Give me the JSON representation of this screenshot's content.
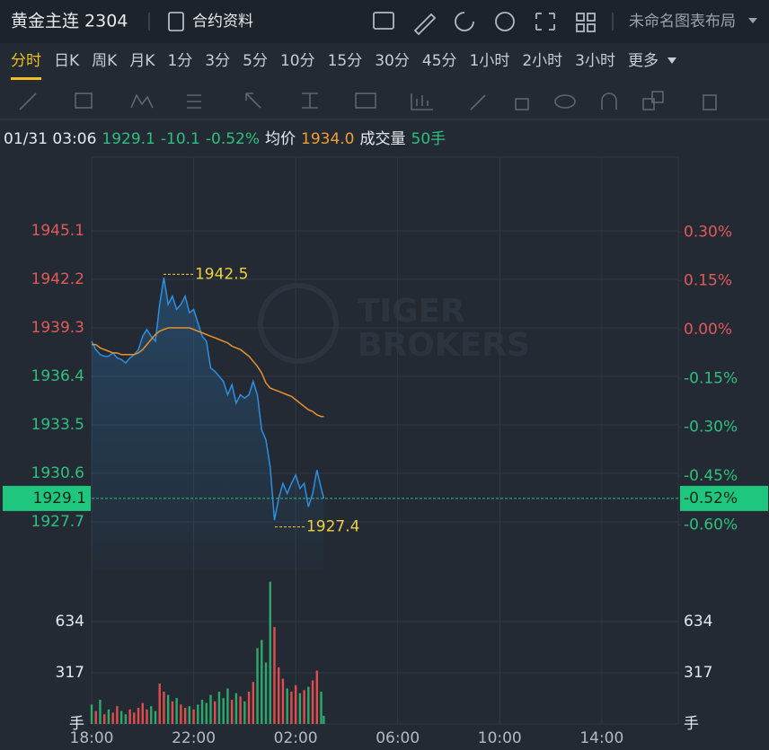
{
  "header": {
    "title": "黄金主连 2304",
    "contract_info": "合约资料",
    "layout": "未命名图表布局"
  },
  "periods": [
    "分时",
    "日K",
    "周K",
    "月K",
    "1分",
    "3分",
    "5分",
    "10分",
    "15分",
    "30分",
    "45分",
    "1小时",
    "2小时",
    "3小时",
    "更多"
  ],
  "active_period": 0,
  "info_bar": {
    "datetime": "01/31 03:06",
    "price": "1929.1",
    "change": "-10.1",
    "change_pct": "-0.52%",
    "avg_label": "均价",
    "avg": "1934.0",
    "volume_label": "成交量",
    "volume": "50手"
  },
  "watermark": [
    "TIGER",
    "BROKERS"
  ],
  "chart_data": {
    "type": "line",
    "x": [
      0,
      10,
      20,
      30,
      40,
      50,
      60,
      70,
      80,
      90,
      100,
      110,
      120,
      130,
      140,
      150,
      160,
      170,
      180,
      190,
      200,
      210,
      220,
      230,
      240,
      250,
      260,
      270,
      280,
      290,
      300,
      310,
      320,
      330,
      340,
      350,
      360,
      370,
      380,
      390,
      400,
      410,
      420,
      430,
      440,
      450,
      460,
      470,
      480,
      490,
      500,
      510,
      520,
      530,
      540,
      546
    ],
    "xlim": [
      0,
      1380
    ],
    "xticks": [
      {
        "value": 0,
        "label": "18:00"
      },
      {
        "value": 240,
        "label": "22:00"
      },
      {
        "value": 480,
        "label": "02:00"
      },
      {
        "value": 720,
        "label": "06:00"
      },
      {
        "value": 960,
        "label": "10:00"
      },
      {
        "value": 1200,
        "label": "14:00"
      }
    ],
    "price": {
      "color": "#2e8ee0",
      "values": [
        1938.5,
        1938.0,
        1937.7,
        1937.6,
        1937.6,
        1937.8,
        1937.5,
        1937.4,
        1937.2,
        1937.5,
        1937.7,
        1938.0,
        1938.8,
        1939.2,
        1938.8,
        1938.5,
        1940.7,
        1942.3,
        1940.7,
        1941.2,
        1940.4,
        1940.7,
        1941.2,
        1940.2,
        1940.4,
        1939.6,
        1938.8,
        1938.5,
        1936.9,
        1936.7,
        1936.4,
        1936.1,
        1935.3,
        1935.9,
        1934.8,
        1935.3,
        1935.1,
        1935.3,
        1936.1,
        1935.3,
        1933.2,
        1932.6,
        1931.0,
        1927.8,
        1929.1,
        1930.0,
        1929.4,
        1930.0,
        1930.5,
        1929.7,
        1930.0,
        1928.6,
        1929.4,
        1930.8,
        1929.7,
        1929.1
      ]
    },
    "average": {
      "color": "#e8922e",
      "values": [
        1938.3,
        1938.3,
        1938.1,
        1938.0,
        1937.9,
        1937.8,
        1937.8,
        1937.7,
        1937.7,
        1937.7,
        1937.7,
        1937.8,
        1938.0,
        1938.3,
        1938.6,
        1938.9,
        1939.1,
        1939.2,
        1939.3,
        1939.3,
        1939.3,
        1939.3,
        1939.3,
        1939.3,
        1939.2,
        1939.1,
        1939.0,
        1938.9,
        1938.8,
        1938.7,
        1938.6,
        1938.5,
        1938.4,
        1938.2,
        1938.1,
        1938.0,
        1937.8,
        1937.6,
        1937.3,
        1937.0,
        1936.6,
        1936.0,
        1935.7,
        1935.6,
        1935.5,
        1935.4,
        1935.3,
        1935.2,
        1935.0,
        1934.8,
        1934.6,
        1934.4,
        1934.3,
        1934.1,
        1934.0,
        1934.0
      ]
    },
    "ylim": [
      1924.8,
      1949.5
    ],
    "yticks": [
      1945.1,
      1942.2,
      1939.3,
      1936.4,
      1933.5,
      1930.6,
      1927.7
    ],
    "y2lim": [
      -0.74,
      0.53
    ],
    "y2ticks": [
      {
        "value": 0.3,
        "label": "0.30%"
      },
      {
        "value": 0.15,
        "label": "0.15%"
      },
      {
        "value": 0,
        "label": "0.00%"
      },
      {
        "value": -0.15,
        "label": "-0.15%"
      },
      {
        "value": -0.3,
        "label": "-0.30%"
      },
      {
        "value": -0.45,
        "label": "-0.45%"
      },
      {
        "value": -0.6,
        "label": "-0.60%"
      }
    ],
    "last_price": 1929.1,
    "last_change_pct": {
      "value": -0.52,
      "label": "-0.52%"
    },
    "annotations": [
      {
        "x": 169,
        "value": 1942.5
      },
      {
        "x": 431,
        "value": 1927.4
      }
    ],
    "volume": {
      "values": [
        120,
        80,
        150,
        60,
        90,
        70,
        110,
        80,
        60,
        90,
        70,
        100,
        130,
        90,
        110,
        80,
        250,
        200,
        180,
        140,
        160,
        120,
        100,
        110,
        90,
        120,
        150,
        130,
        180,
        140,
        200,
        160,
        220,
        150,
        190,
        170,
        140,
        200,
        260,
        470,
        520,
        380,
        880,
        600,
        350,
        280,
        220,
        200,
        240,
        190,
        210,
        230,
        270,
        330,
        200,
        50
      ],
      "colors": [
        "#2ea86b",
        "#e04d4d",
        "#2ea86b",
        "#e04d4d",
        "#2ea86b",
        "#e04d4d",
        "#e04d4d",
        "#2ea86b",
        "#2ea86b",
        "#e04d4d",
        "#e04d4d",
        "#e04d4d",
        "#e04d4d",
        "#e04d4d",
        "#2ea86b",
        "#2ea86b",
        "#e04d4d",
        "#e04d4d",
        "#2ea86b",
        "#e04d4d",
        "#2ea86b",
        "#e04d4d",
        "#e04d4d",
        "#2ea86b",
        "#e04d4d",
        "#2ea86b",
        "#2ea86b",
        "#2ea86b",
        "#2ea86b",
        "#e04d4d",
        "#2ea86b",
        "#2ea86b",
        "#2ea86b",
        "#e04d4d",
        "#2ea86b",
        "#e04d4d",
        "#2ea86b",
        "#e04d4d",
        "#e04d4d",
        "#2ea86b",
        "#2ea86b",
        "#2ea86b",
        "#2ea86b",
        "#e04d4d",
        "#e04d4d",
        "#e04d4d",
        "#2ea86b",
        "#e04d4d",
        "#e04d4d",
        "#2ea86b",
        "#e04d4d",
        "#2ea86b",
        "#e04d4d",
        "#e04d4d",
        "#2ea86b",
        "#2ea86b"
      ],
      "ylim": [
        0,
        923
      ],
      "yticks": [
        317,
        634
      ],
      "unit": "手"
    },
    "grid": true
  }
}
